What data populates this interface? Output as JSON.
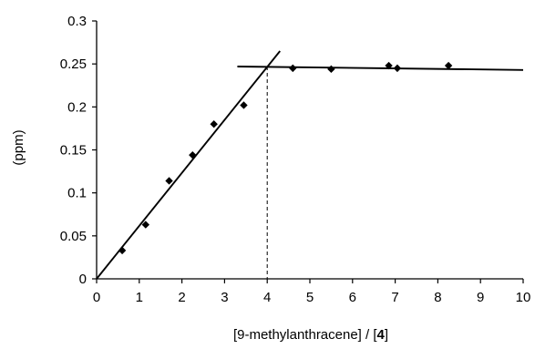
{
  "chart_data": {
    "type": "scatter",
    "title": "",
    "xlabel_prefix": "[9-methylanthracene] / [",
    "xlabel_bold": "4",
    "xlabel_suffix": "]",
    "ylabel": "(ppm)",
    "xlim": [
      0,
      10
    ],
    "ylim": [
      0,
      0.3
    ],
    "xticks": [
      0,
      1,
      2,
      3,
      4,
      5,
      6,
      7,
      8,
      9,
      10
    ],
    "yticks": [
      0,
      0.05,
      0.1,
      0.15,
      0.2,
      0.25,
      0.3
    ],
    "ytick_labels": [
      "0",
      "0.05",
      "0.1",
      "0.15",
      "0.2",
      "0.25",
      "0.3"
    ],
    "grid": false,
    "series": [
      {
        "marker": "diamond",
        "x": [
          0.6,
          1.15,
          1.7,
          2.25,
          2.75,
          3.45,
          4.6,
          5.5,
          6.85,
          7.05,
          8.25
        ],
        "y": [
          0.033,
          0.063,
          0.114,
          0.144,
          0.18,
          0.202,
          0.245,
          0.244,
          0.248,
          0.245,
          0.248
        ]
      }
    ],
    "fit_lines": [
      {
        "x": [
          0,
          4.3
        ],
        "y": [
          0,
          0.265
        ]
      },
      {
        "x": [
          3.3,
          10
        ],
        "y": [
          0.247,
          0.243
        ]
      }
    ],
    "vertical_guide": {
      "x": 4.0,
      "y_top": 0.247,
      "style": "dashed"
    },
    "colors": {
      "axis": "#000000",
      "marker": "#000000",
      "line": "#000000"
    }
  }
}
